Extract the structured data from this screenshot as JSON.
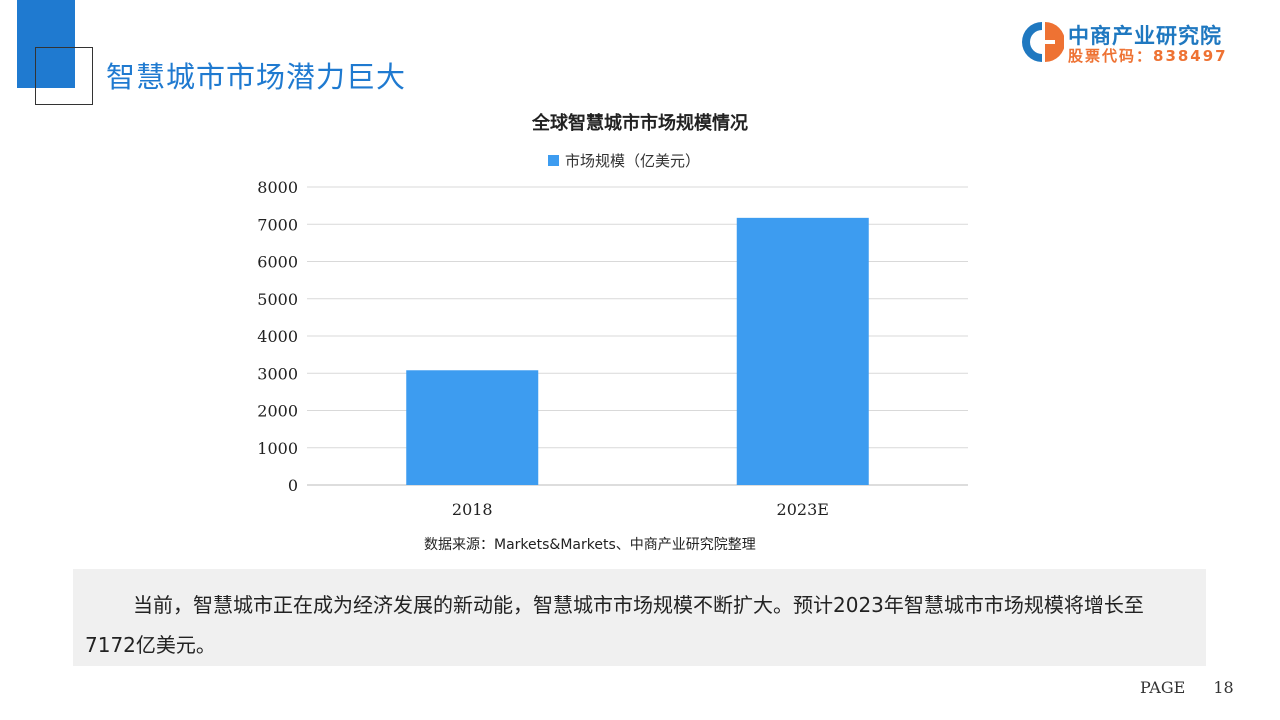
{
  "slide": {
    "title": "智慧城市市场潜力巨大",
    "source": "数据来源：Markets&Markets、中商产业研究院整理",
    "summary": "当前，智慧城市正在成为经济发展的新动能，智慧城市市场规模不断扩大。预计2023年智慧城市市场规模将增长至7172亿美元。",
    "page_label": "PAGE",
    "page_number": "18"
  },
  "logo": {
    "name": "中商产业研究院",
    "stock_code": "股票代码：838497",
    "colors": {
      "blue": "#1f78c0",
      "orange": "#ee7233"
    }
  },
  "chart_data": {
    "type": "bar",
    "title": "全球智慧城市市场规模情况",
    "categories": [
      "2018",
      "2023E"
    ],
    "series": [
      {
        "name": "市场规模（亿美元）",
        "values": [
          3080,
          7172
        ],
        "color": "#3d9cf0"
      }
    ],
    "ylim": [
      0,
      8000
    ],
    "yticks": [
      0,
      1000,
      2000,
      3000,
      4000,
      5000,
      6000,
      7000,
      8000
    ],
    "grid": true,
    "legend_placement": "top"
  }
}
